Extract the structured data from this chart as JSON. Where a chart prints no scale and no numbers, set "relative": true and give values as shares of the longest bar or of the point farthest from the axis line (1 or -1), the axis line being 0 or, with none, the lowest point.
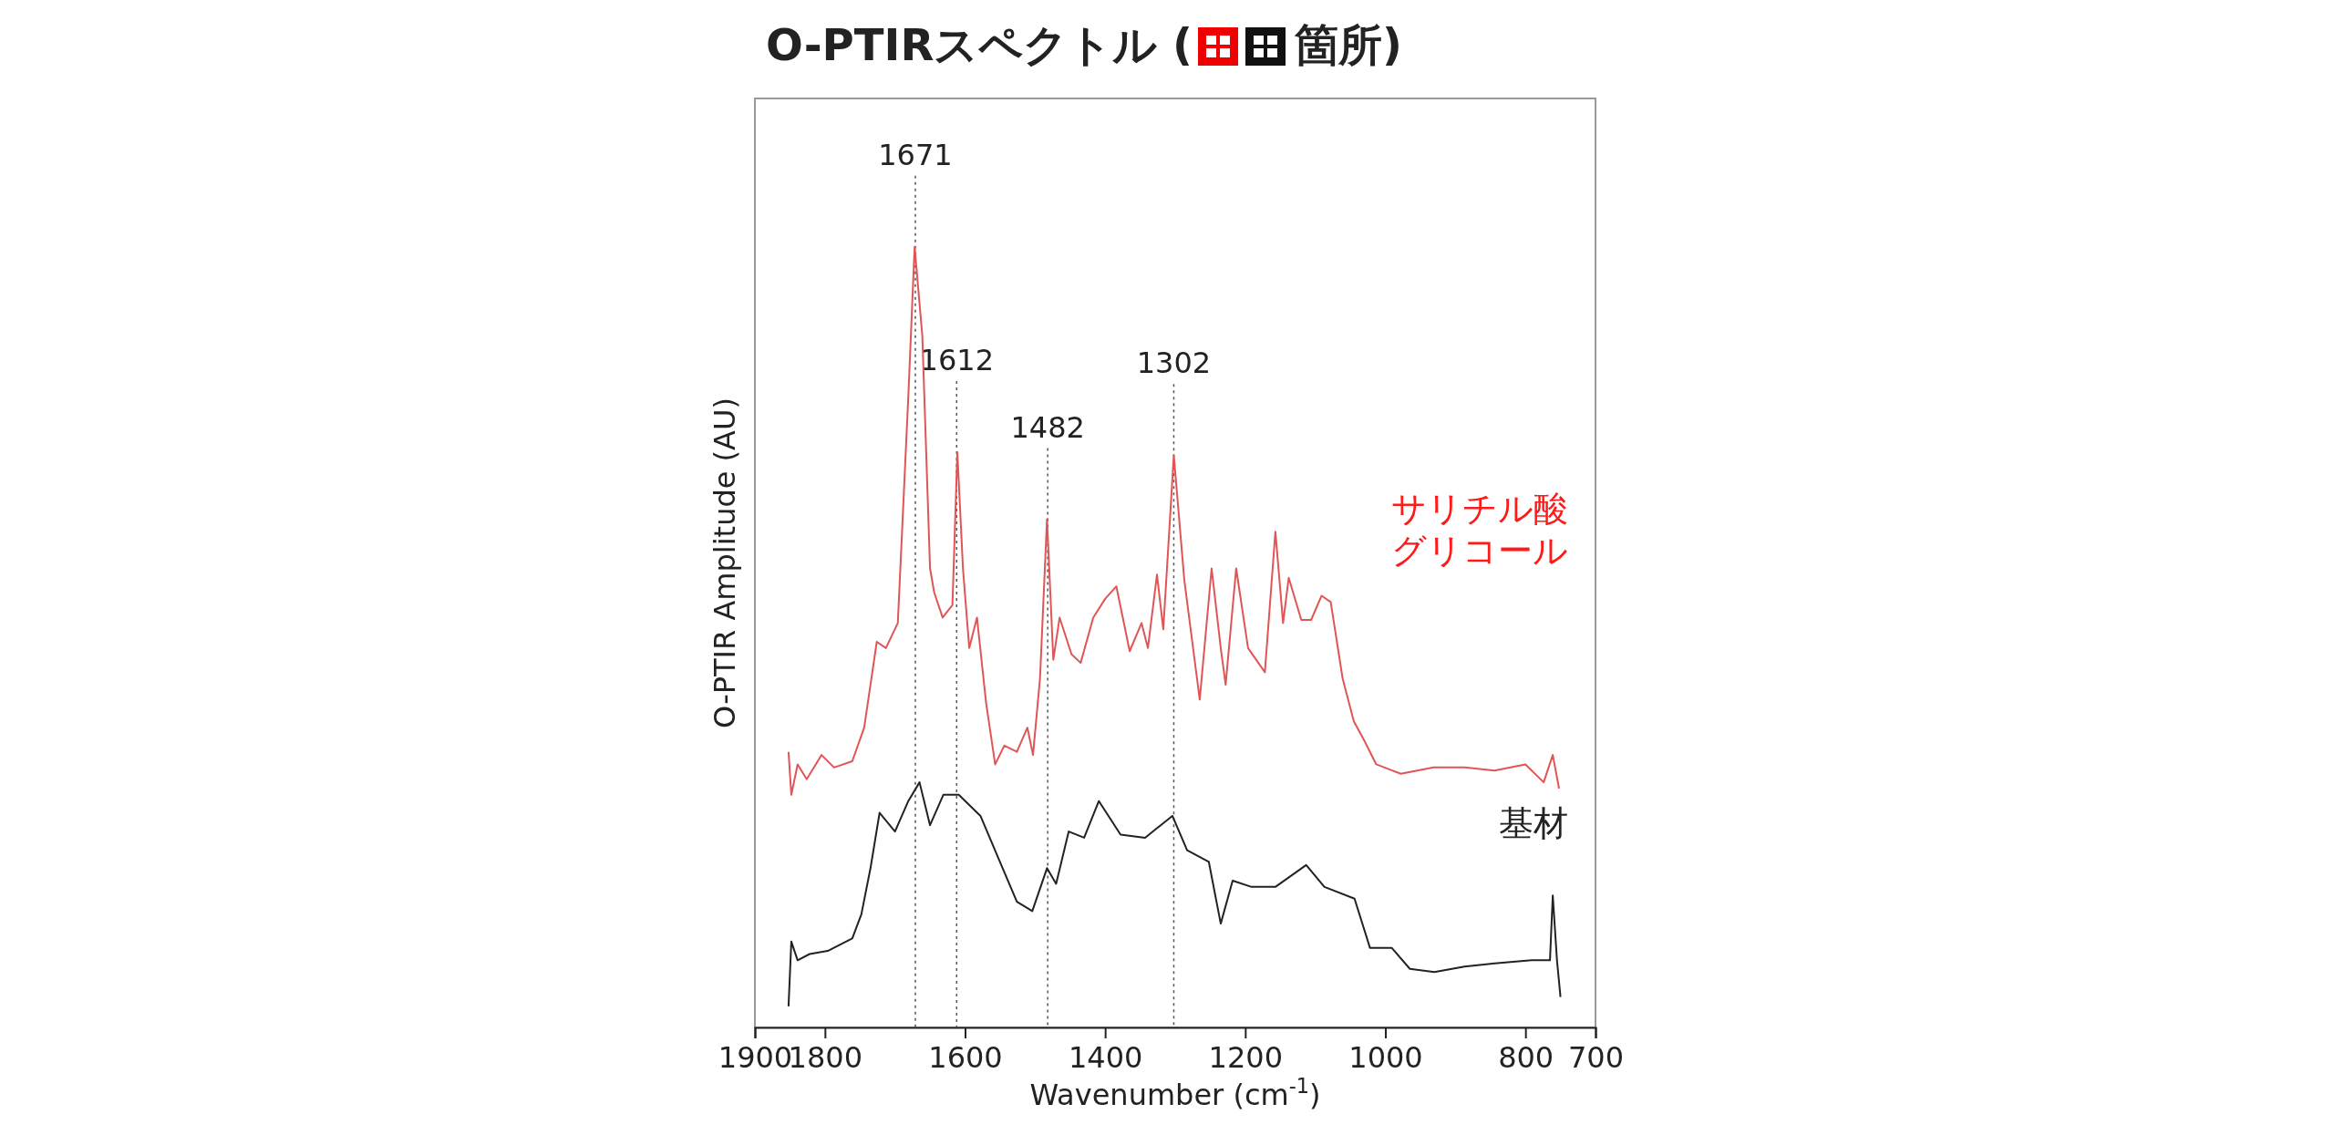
{
  "chart_data": {
    "type": "line",
    "title": "O-PTIRスペクトル (箇所)",
    "xlabel": "Wavenumber (cm$^{-1}$)",
    "ylabel": "O-PTIR Amplitude (AU)",
    "relative": true,
    "legend": false,
    "grid": false,
    "xlim": [
      1900,
      700
    ],
    "xticks": [
      1900,
      1800,
      1600,
      1400,
      1200,
      1000,
      800,
      700
    ],
    "ref_lines": [
      {
        "axis": "x",
        "value": 1671,
        "label": "1671",
        "line_style": "dotted",
        "color": "#555555"
      },
      {
        "axis": "x",
        "value": 1612,
        "label": "1612",
        "line_style": "dotted",
        "color": "#555555"
      },
      {
        "axis": "x",
        "value": 1482,
        "label": "1482",
        "line_style": "dotted",
        "color": "#555555"
      },
      {
        "axis": "x",
        "value": 1302,
        "label": "1302",
        "line_style": "dotted",
        "color": "#555555"
      }
    ],
    "series": [
      {
        "name": "サリチル酸グリコール",
        "color": "#e05555",
        "x": [
          1852,
          1848,
          1839,
          1826,
          1805,
          1787,
          1761,
          1744,
          1726,
          1713,
          1696,
          1681,
          1672,
          1661,
          1650,
          1644,
          1632,
          1618,
          1611,
          1603,
          1594,
          1583,
          1570,
          1557,
          1544,
          1526,
          1511,
          1503,
          1493,
          1483,
          1474,
          1465,
          1448,
          1435,
          1417,
          1400,
          1384,
          1365,
          1348,
          1339,
          1326,
          1317,
          1302,
          1287,
          1265,
          1248,
          1235,
          1228,
          1213,
          1196,
          1172,
          1157,
          1146,
          1138,
          1120,
          1106,
          1091,
          1078,
          1061,
          1045,
          1031,
          1013,
          978,
          931,
          887,
          844,
          800,
          774,
          761,
          752
        ],
        "values": [
          0.353,
          0.298,
          0.337,
          0.318,
          0.349,
          0.333,
          0.341,
          0.384,
          0.494,
          0.486,
          0.518,
          0.808,
          1.0,
          0.886,
          0.588,
          0.557,
          0.525,
          0.541,
          0.737,
          0.588,
          0.486,
          0.525,
          0.416,
          0.337,
          0.361,
          0.353,
          0.384,
          0.349,
          0.447,
          0.651,
          0.471,
          0.525,
          0.478,
          0.467,
          0.525,
          0.549,
          0.565,
          0.482,
          0.518,
          0.486,
          0.58,
          0.51,
          0.733,
          0.573,
          0.42,
          0.588,
          0.486,
          0.439,
          0.588,
          0.486,
          0.455,
          0.635,
          0.518,
          0.576,
          0.522,
          0.522,
          0.553,
          0.545,
          0.447,
          0.392,
          0.369,
          0.337,
          0.325,
          0.333,
          0.333,
          0.329,
          0.337,
          0.314,
          0.349,
          0.306
        ]
      },
      {
        "name": "基材",
        "color": "#222222",
        "x": [
          1852,
          1848,
          1839,
          1822,
          1796,
          1761,
          1748,
          1735,
          1722,
          1700,
          1681,
          1665,
          1650,
          1631,
          1609,
          1578,
          1552,
          1526,
          1504,
          1483,
          1470,
          1452,
          1430,
          1409,
          1378,
          1343,
          1304,
          1283,
          1252,
          1235,
          1218,
          1191,
          1157,
          1113,
          1087,
          1044,
          1022,
          991,
          965,
          930,
          887,
          844,
          791,
          765,
          761,
          755,
          750
        ],
        "values": [
          0.027,
          0.11,
          0.086,
          0.094,
          0.098,
          0.114,
          0.145,
          0.204,
          0.275,
          0.251,
          0.29,
          0.314,
          0.259,
          0.298,
          0.298,
          0.271,
          0.216,
          0.161,
          0.149,
          0.204,
          0.184,
          0.251,
          0.243,
          0.29,
          0.247,
          0.243,
          0.271,
          0.227,
          0.212,
          0.133,
          0.188,
          0.18,
          0.18,
          0.208,
          0.18,
          0.165,
          0.102,
          0.102,
          0.075,
          0.071,
          0.078,
          0.082,
          0.086,
          0.086,
          0.169,
          0.086,
          0.039
        ]
      }
    ]
  }
}
